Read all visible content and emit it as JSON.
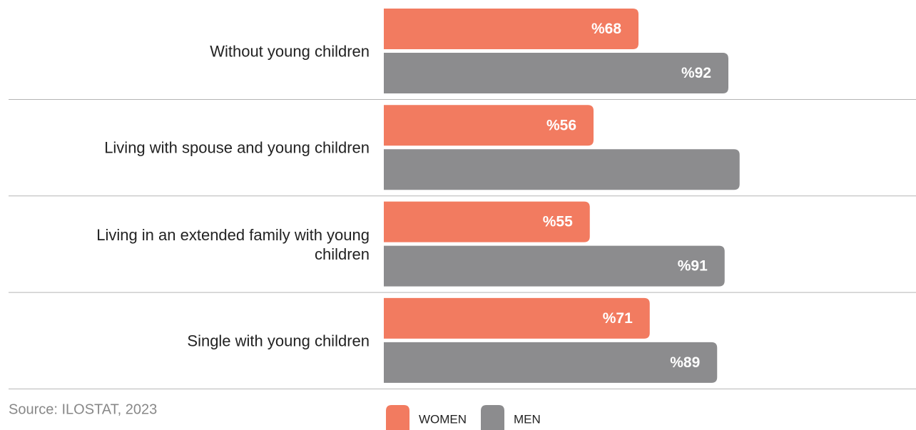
{
  "chart_data": {
    "type": "bar",
    "orientation": "horizontal",
    "categories": [
      "Without young children",
      "Living with spouse and young children",
      "Living in an extended family with young children",
      "Single with young children"
    ],
    "series": [
      {
        "name": "WOMEN",
        "color": "#f27b60",
        "values": [
          68,
          56,
          55,
          71
        ],
        "value_labels": [
          "%68",
          "%56",
          "%55",
          "%71"
        ]
      },
      {
        "name": "MEN",
        "color": "#8c8c8e",
        "values": [
          92,
          95,
          91,
          89
        ],
        "value_labels": [
          "%92",
          null,
          "%91",
          "%89"
        ]
      }
    ],
    "xlim": [
      0,
      100
    ],
    "source": "Source: ILOSTAT, 2023"
  }
}
